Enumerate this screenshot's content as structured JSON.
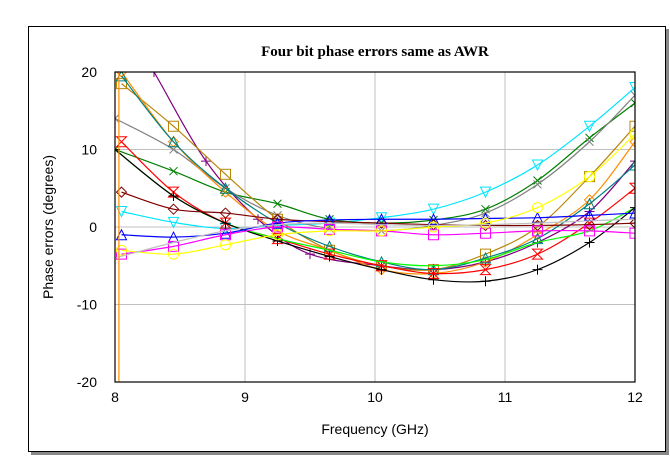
{
  "chart_data": {
    "type": "line",
    "title": "Four bit phase errors same as AWR",
    "xlabel": "Frequency (GHz)",
    "ylabel": "Phase errors (degrees)",
    "xlim": [
      8,
      12
    ],
    "ylim": [
      -20,
      20
    ],
    "xticks": [
      "8",
      "9",
      "10",
      "11",
      "12"
    ],
    "yticks": [
      "20",
      "10",
      "0",
      "-10",
      "-20"
    ],
    "xtick_values": [
      8,
      9,
      10,
      11,
      12
    ],
    "ytick_values": [
      20,
      10,
      0,
      -10,
      -20
    ],
    "grid": true,
    "legend": "none",
    "series": [
      {
        "color": "#00e5ff",
        "marker": "triangle-down",
        "x": [
          8.05,
          8.45,
          8.85,
          9.25,
          9.65,
          10.05,
          10.45,
          10.85,
          11.25,
          11.65,
          12
        ],
        "y": [
          2,
          0.6,
          -0.2,
          0.2,
          0.5,
          1.2,
          2.3,
          4.5,
          8,
          13,
          18
        ]
      },
      {
        "color": "#008000",
        "marker": "x",
        "x": [
          8,
          8.45,
          8.85,
          9.25,
          9.65,
          10.05,
          10.45,
          10.85,
          11.25,
          11.65,
          12
        ],
        "y": [
          10,
          7.2,
          4.5,
          3,
          1,
          0.5,
          0.9,
          2.3,
          6,
          11.5,
          16
        ]
      },
      {
        "color": "#808080",
        "marker": "x",
        "x": [
          8,
          8.45,
          8.85,
          9.25,
          9.65,
          10.05,
          10.45,
          10.85,
          11.25,
          11.65,
          12
        ],
        "y": [
          14,
          10,
          5,
          1.5,
          -0.2,
          -0.5,
          0.2,
          1.8,
          5.5,
          11,
          17
        ]
      },
      {
        "color": "#800080",
        "marker": "plus",
        "x": [
          8.05,
          8.3,
          8.7,
          9.1,
          9.5,
          10.05,
          10.45,
          10.85,
          11.25,
          11.65,
          12
        ],
        "y": [
          27,
          20,
          8.5,
          1,
          -3.5,
          -5,
          -5.5,
          -4.5,
          -2,
          2,
          8.5
        ]
      },
      {
        "color": "#b8860b",
        "marker": "square",
        "x": [
          8.05,
          8.45,
          8.85,
          9.25,
          9.65,
          10.05,
          10.45,
          10.85,
          11.25,
          11.65,
          12
        ],
        "y": [
          18.5,
          13,
          6.8,
          1,
          -3,
          -5,
          -5.5,
          -3.5,
          0,
          6.5,
          13
        ]
      },
      {
        "color": "#ff8c00",
        "marker": "diamond",
        "x": [
          8.05,
          8.45,
          8.85,
          9.25,
          9.65,
          10.05,
          10.45,
          10.85,
          11.25,
          11.65,
          12
        ],
        "y": [
          20,
          11,
          4.5,
          -0.5,
          -3,
          -5.5,
          -6,
          -4.5,
          -1,
          3.5,
          11
        ]
      },
      {
        "color": "#008080",
        "marker": "triangle-up",
        "x": [
          8.05,
          8.45,
          8.85,
          9.25,
          9.65,
          10.05,
          10.45,
          10.85,
          11.25,
          11.65,
          12
        ],
        "y": [
          19.5,
          11,
          5,
          0.5,
          -2.5,
          -4.5,
          -5.5,
          -4,
          -1.5,
          3,
          8
        ]
      },
      {
        "color": "#ff0000",
        "marker": "hourglass",
        "x": [
          8.05,
          8.45,
          8.85,
          9.25,
          9.65,
          10.05,
          10.45,
          10.85,
          11.25,
          11.65,
          12
        ],
        "y": [
          11,
          4.5,
          0.5,
          -1.5,
          -3.5,
          -5,
          -6,
          -5.5,
          -3.5,
          0.5,
          5
        ]
      },
      {
        "color": "#00ff00",
        "marker": "none",
        "x": [
          8,
          8.45,
          8.85,
          9.25,
          9.65,
          10.05,
          10.45,
          10.85,
          11.25,
          11.65,
          12
        ],
        "y": [
          10,
          4,
          0.5,
          -1.5,
          -3,
          -4.5,
          -5,
          -4.2,
          -2,
          -0.5,
          2.5
        ]
      },
      {
        "color": "#000000",
        "marker": "plus",
        "x": [
          8,
          8.45,
          8.85,
          9.25,
          9.65,
          10.05,
          10.45,
          10.85,
          11.25,
          11.65,
          12
        ],
        "y": [
          10,
          4,
          0.5,
          -1.8,
          -3.8,
          -5.5,
          -6.8,
          -7,
          -5.5,
          -2,
          2.5
        ]
      },
      {
        "color": "#800000",
        "marker": "diamond",
        "x": [
          8.05,
          8.45,
          8.85,
          9.25,
          9.65,
          10.05,
          10.45,
          10.85,
          11.25,
          11.65,
          12
        ],
        "y": [
          4.5,
          2.3,
          1.8,
          1,
          0.7,
          0.5,
          0.3,
          0.2,
          0.2,
          0.3,
          0.5
        ]
      },
      {
        "color": "#0000ff",
        "marker": "triangle-up",
        "x": [
          8.05,
          8.45,
          8.85,
          9.25,
          9.65,
          10.05,
          10.45,
          10.85,
          11.25,
          11.65,
          12
        ],
        "y": [
          -1,
          -1.3,
          -0.8,
          0.5,
          0.9,
          1,
          1,
          1.1,
          1.2,
          1.5,
          1.8
        ]
      },
      {
        "color": "#ff00ff",
        "marker": "square",
        "x": [
          8.05,
          8.45,
          8.85,
          9.25,
          9.65,
          10.05,
          10.45,
          10.85,
          11.25,
          11.65,
          12
        ],
        "y": [
          -3.5,
          -2.5,
          -1,
          0,
          -0.3,
          -0.5,
          -1,
          -0.8,
          -0.5,
          -0.5,
          -0.8
        ]
      },
      {
        "color": "#ffff00",
        "marker": "circle",
        "x": [
          8.05,
          8.45,
          8.85,
          9.25,
          9.65,
          10.05,
          10.45,
          10.85,
          11.25,
          11.65,
          12
        ],
        "y": [
          -3,
          -3.5,
          -2.3,
          -1,
          -0.5,
          -0.5,
          0,
          0.5,
          2.5,
          6.5,
          12
        ]
      },
      {
        "color": "#c0c0c0",
        "marker": "none",
        "x": [
          8,
          8.45,
          8.85,
          9.25,
          9.65,
          10.05,
          10.45,
          10.85,
          11.25,
          11.65,
          12
        ],
        "y": [
          -4,
          -2,
          -0.5,
          0.3,
          0.5,
          0.3,
          0.2,
          0.3,
          0.5,
          0.8,
          1
        ]
      },
      {
        "color": "#ff8c00",
        "marker": "none",
        "x": [
          8.03,
          8.03
        ],
        "y": [
          20,
          -20
        ]
      }
    ]
  }
}
